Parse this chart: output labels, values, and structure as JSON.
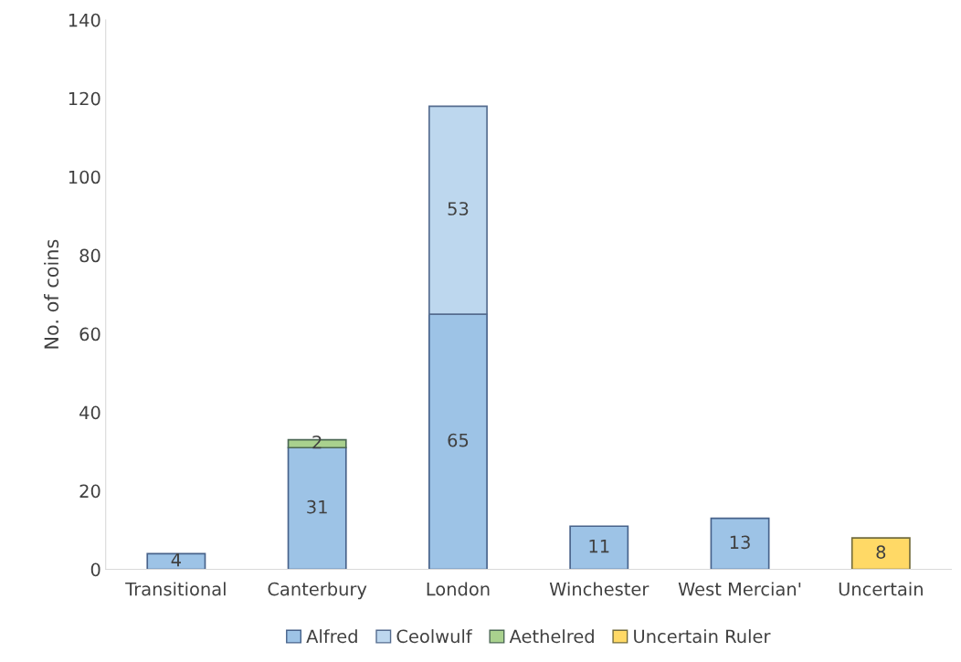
{
  "chart_data": {
    "type": "bar",
    "stacked": true,
    "ylabel": "No. of coins",
    "categories": [
      "Transitional",
      "Canterbury",
      "London",
      "Winchester",
      "West Mercian'",
      "Uncertain"
    ],
    "series": [
      {
        "name": "Alfred",
        "color": "#9dc3e6",
        "values": [
          4,
          31,
          65,
          11,
          13,
          null
        ]
      },
      {
        "name": "Ceolwulf",
        "color": "#bdd7ee",
        "values": [
          null,
          null,
          53,
          null,
          null,
          null
        ]
      },
      {
        "name": "Aethelred",
        "color": "#a9d18e",
        "values": [
          null,
          2,
          null,
          null,
          null,
          null
        ]
      },
      {
        "name": "Uncertain Ruler",
        "color": "#ffd966",
        "values": [
          null,
          null,
          null,
          null,
          null,
          8
        ]
      }
    ],
    "ylim": [
      0,
      140
    ],
    "yticks": [
      0,
      20,
      40,
      60,
      80,
      100,
      120,
      140
    ],
    "grid": false,
    "legend": "bottom",
    "data_labels": true
  }
}
